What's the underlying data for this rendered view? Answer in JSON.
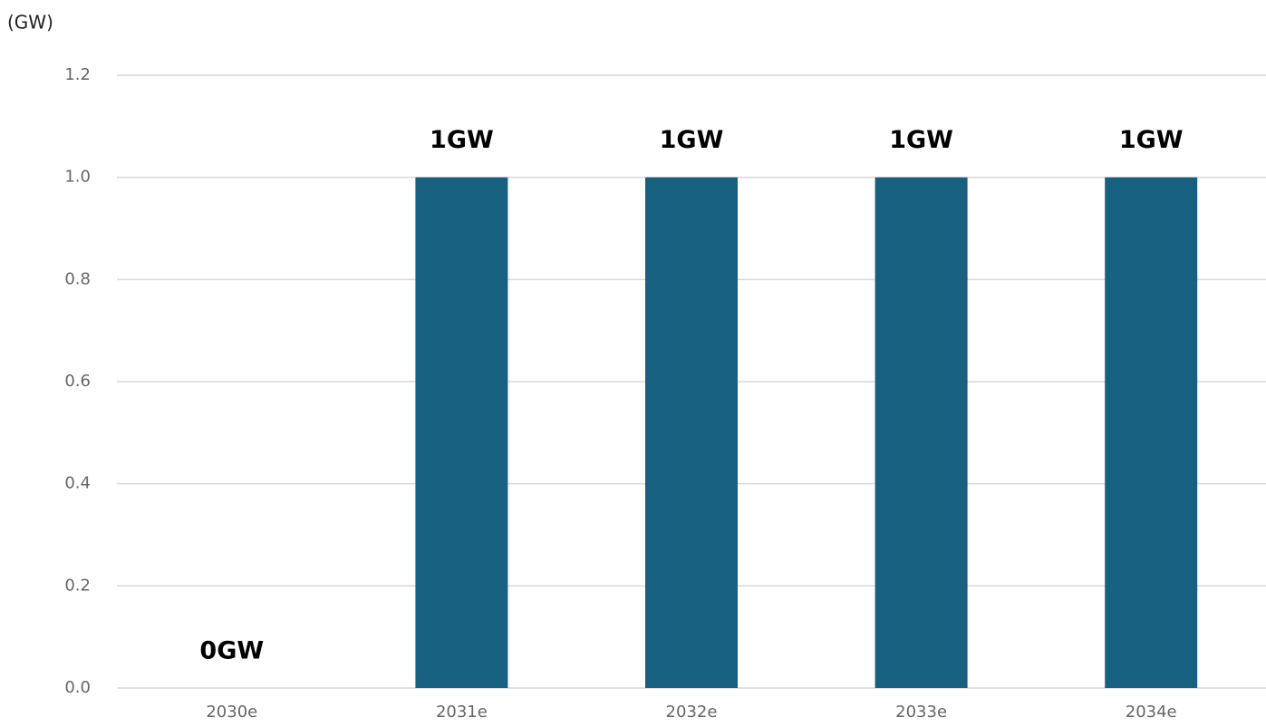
{
  "chart_data": {
    "type": "bar",
    "y_axis_label": "(GW)",
    "categories": [
      "2030e",
      "2031e",
      "2032e",
      "2033e",
      "2034e"
    ],
    "values": [
      0,
      1,
      1,
      1,
      1
    ],
    "value_labels": [
      "0GW",
      "1GW",
      "1GW",
      "1GW",
      "1GW"
    ],
    "color": "#17607f",
    "ylim": [
      0,
      1.2
    ],
    "yticks": [
      {
        "value": 0,
        "label": "0.0"
      },
      0.2,
      0.4,
      0.6,
      0.8,
      {
        "value": 1,
        "label": "1.0"
      },
      1.2
    ],
    "grid": true
  }
}
